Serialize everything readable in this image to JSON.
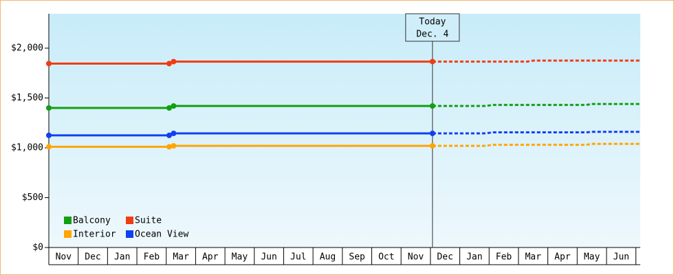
{
  "chart_data": {
    "type": "line",
    "categories": [
      "Nov",
      "Dec",
      "Jan",
      "Feb",
      "Mar",
      "Apr",
      "May",
      "Jun",
      "Jul",
      "Aug",
      "Sep",
      "Oct",
      "Nov",
      "Dec",
      "Jan",
      "Feb",
      "Mar",
      "Apr",
      "May",
      "Jun"
    ],
    "xlim": [
      0,
      20.15
    ],
    "ylim": [
      0,
      2345
    ],
    "yticks": [
      {
        "value": 0,
        "label": "$0"
      },
      {
        "value": 500,
        "label": "$500"
      },
      {
        "value": 1000,
        "label": "$1,000"
      },
      {
        "value": 1500,
        "label": "$1,500"
      },
      {
        "value": 2000,
        "label": "$2,000"
      }
    ],
    "x": [
      0,
      4.1,
      4.25,
      13.07
    ],
    "series": [
      {
        "name": "Balcony",
        "color": "#10a010",
        "values": [
          1400,
          1400,
          1420,
          1420
        ],
        "forecast": {
          "x": [
            13.07,
            14.9,
            15.1,
            18.3,
            18.5,
            20.15
          ],
          "values": [
            1420,
            1420,
            1430,
            1430,
            1440,
            1440
          ]
        }
      },
      {
        "name": "Suite",
        "color": "#f03c10",
        "values": [
          1845,
          1845,
          1865,
          1865
        ],
        "forecast": {
          "x": [
            13.07,
            14.9,
            15.1,
            16.3,
            16.5,
            20.15
          ],
          "values": [
            1865,
            1865,
            1865,
            1865,
            1875,
            1875
          ]
        }
      },
      {
        "name": "Interior",
        "color": "#ffa500",
        "values": [
          1010,
          1010,
          1020,
          1020
        ],
        "forecast": {
          "x": [
            13.07,
            14.9,
            15.1,
            18.3,
            18.5,
            20.15
          ],
          "values": [
            1020,
            1020,
            1030,
            1030,
            1040,
            1040
          ]
        }
      },
      {
        "name": "Ocean View",
        "color": "#1040f0",
        "values": [
          1125,
          1125,
          1145,
          1145
        ],
        "forecast": {
          "x": [
            13.07,
            14.9,
            15.1,
            18.3,
            18.5,
            20.15
          ],
          "values": [
            1145,
            1145,
            1155,
            1155,
            1160,
            1160
          ]
        }
      }
    ],
    "annotation": {
      "x": 13.07,
      "text": [
        "Today",
        "Dec. 4"
      ]
    }
  }
}
